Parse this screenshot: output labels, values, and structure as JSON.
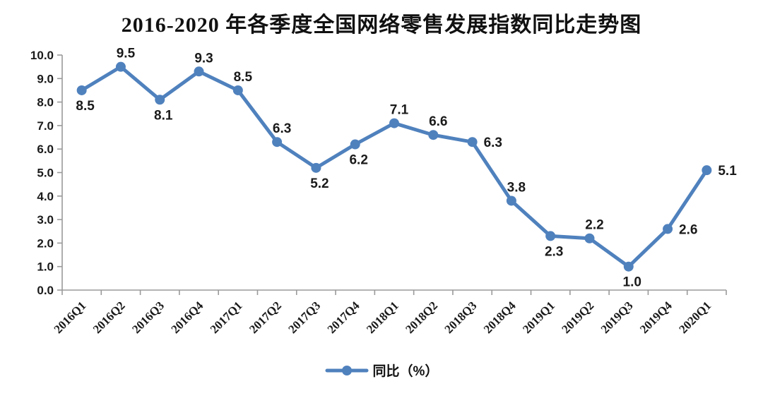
{
  "chart_data": {
    "type": "line",
    "title": "2016-2020 年各季度全国网络零售发展指数同比走势图",
    "categories": [
      "2016Q1",
      "2016Q2",
      "2016Q3",
      "2016Q4",
      "2017Q1",
      "2017Q2",
      "2017Q3",
      "2017Q4",
      "2018Q1",
      "2018Q2",
      "2018Q3",
      "2018Q4",
      "2019Q1",
      "2019Q2",
      "2019Q3",
      "2019Q4",
      "2020Q1"
    ],
    "series": [
      {
        "name": "同比（%）",
        "values": [
          8.5,
          9.5,
          8.1,
          9.3,
          8.5,
          6.3,
          5.2,
          6.2,
          7.1,
          6.6,
          6.3,
          3.8,
          2.3,
          2.2,
          1.0,
          2.6,
          5.1
        ]
      }
    ],
    "data_label_positions": [
      "below",
      "above",
      "below",
      "above",
      "above",
      "above",
      "below",
      "below",
      "above",
      "above",
      "right",
      "above",
      "below",
      "above",
      "below",
      "right",
      "right"
    ],
    "data_label_decimals": 1,
    "xlabel": "",
    "ylabel": "",
    "ylim": [
      0,
      10
    ],
    "y_tick_step": 1,
    "y_tick_decimals": 1,
    "grid": false,
    "legend": {
      "position": "bottom",
      "label": "同比（%）"
    },
    "colors": {
      "line": "#4F81BD",
      "marker": "#4F81BD",
      "axis": "#9A9A9A",
      "tick_text": "#1A1A1A",
      "data_label_text": "#1A1A1A"
    }
  }
}
